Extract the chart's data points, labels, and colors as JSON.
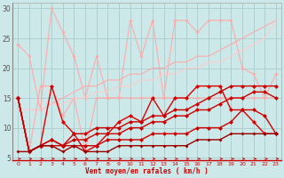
{
  "xlabel": "Vent moyen/en rafales ( km/h )",
  "xlim": [
    -0.5,
    23.5
  ],
  "ylim": [
    4.5,
    31
  ],
  "yticks": [
    5,
    10,
    15,
    20,
    25,
    30
  ],
  "xticks": [
    0,
    1,
    2,
    3,
    4,
    5,
    6,
    7,
    8,
    9,
    10,
    11,
    12,
    13,
    14,
    15,
    16,
    17,
    18,
    19,
    20,
    21,
    22,
    23
  ],
  "bg_color": "#cce8e8",
  "grid_color": "#aacccc",
  "lines": [
    {
      "y": [
        24,
        22,
        13,
        30,
        26,
        22,
        15,
        22,
        15,
        15,
        28,
        22,
        28,
        15,
        28,
        28,
        26,
        28,
        28,
        28,
        20,
        19,
        15,
        19
      ],
      "color": "#ffaaaa",
      "lw": 0.8,
      "marker": "D",
      "ms": 2.0,
      "zorder": 2
    },
    {
      "y": [
        15,
        6,
        17,
        17,
        12,
        15,
        6,
        15,
        15,
        15,
        15,
        15,
        15,
        15,
        15,
        15,
        15,
        15,
        15,
        15,
        15,
        15,
        15,
        15
      ],
      "color": "#ffaaaa",
      "lw": 0.8,
      "marker": "D",
      "ms": 2.0,
      "zorder": 2
    },
    {
      "y": [
        13,
        13,
        13,
        14,
        15,
        16,
        17,
        17,
        18,
        18,
        19,
        19,
        20,
        20,
        21,
        21,
        22,
        22,
        23,
        24,
        25,
        26,
        27,
        28
      ],
      "color": "#ffaaaa",
      "lw": 0.8,
      "marker": null,
      "ms": 0,
      "zorder": 2
    },
    {
      "y": [
        13,
        13,
        13,
        14,
        14,
        15,
        15,
        16,
        16,
        17,
        17,
        18,
        18,
        19,
        19,
        20,
        20,
        21,
        21,
        22,
        23,
        24,
        25,
        28
      ],
      "color": "#ffcccc",
      "lw": 0.8,
      "marker": null,
      "ms": 0,
      "zorder": 2
    },
    {
      "y": [
        15,
        6,
        7,
        17,
        11,
        9,
        6,
        7,
        9,
        11,
        12,
        11,
        15,
        12,
        15,
        15,
        17,
        17,
        17,
        13,
        13,
        11,
        9,
        9
      ],
      "color": "#dd0000",
      "lw": 1.0,
      "marker": "D",
      "ms": 2.5,
      "zorder": 4
    },
    {
      "y": [
        15,
        6,
        7,
        8,
        7,
        9,
        9,
        10,
        10,
        10,
        11,
        11,
        12,
        12,
        13,
        13,
        14,
        15,
        16,
        17,
        17,
        17,
        17,
        17
      ],
      "color": "#cc0000",
      "lw": 1.0,
      "marker": "D",
      "ms": 2.5,
      "zorder": 4
    },
    {
      "y": [
        15,
        6,
        7,
        8,
        7,
        8,
        8,
        9,
        9,
        9,
        10,
        10,
        11,
        11,
        12,
        12,
        13,
        13,
        14,
        15,
        15,
        16,
        16,
        15
      ],
      "color": "#cc0000",
      "lw": 1.0,
      "marker": "D",
      "ms": 2.5,
      "zorder": 4
    },
    {
      "y": [
        15,
        6,
        7,
        7,
        7,
        7,
        7,
        7,
        8,
        8,
        8,
        8,
        9,
        9,
        9,
        9,
        10,
        10,
        10,
        11,
        13,
        13,
        12,
        9
      ],
      "color": "#cc0000",
      "lw": 1.0,
      "marker": "D",
      "ms": 2.5,
      "zorder": 4
    },
    {
      "y": [
        6,
        6,
        7,
        7,
        6,
        7,
        6,
        6,
        6,
        7,
        7,
        7,
        7,
        7,
        7,
        7,
        8,
        8,
        8,
        9,
        9,
        9,
        9,
        9
      ],
      "color": "#990000",
      "lw": 1.0,
      "marker": "D",
      "ms": 2.0,
      "zorder": 4
    }
  ],
  "arrows": {
    "y": 4.8,
    "color": "#cc0000",
    "angles": [
      0,
      315,
      45,
      45,
      0,
      0,
      0,
      0,
      0,
      0,
      0,
      0,
      0,
      45,
      0,
      45,
      315,
      0,
      0,
      0,
      0,
      0,
      0,
      315
    ]
  }
}
